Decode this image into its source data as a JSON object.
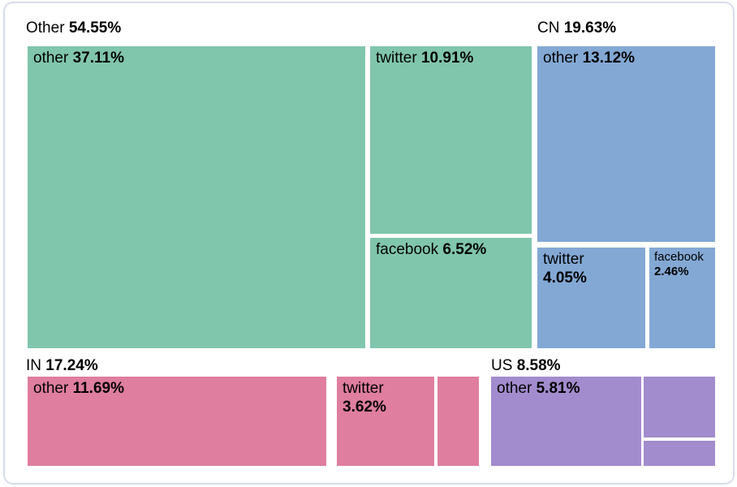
{
  "colors": {
    "group_other": "#80c6ac",
    "group_cn": "#83a8d4",
    "group_in": "#df7e9e",
    "group_us": "#a28ccd",
    "card_border": "#d6dce9",
    "text": "#000000",
    "background": "#ffffff"
  },
  "chart_data": {
    "type": "treemap",
    "title": "",
    "unit": "%",
    "legend": "none",
    "groups": [
      {
        "label": "Other",
        "pct": "54.55%",
        "value": 54.55,
        "color": "#80c6ac",
        "children": [
          {
            "label": "other",
            "pct": "37.11%",
            "value": 37.11
          },
          {
            "label": "twitter",
            "pct": "10.91%",
            "value": 10.91
          },
          {
            "label": "facebook",
            "pct": "6.52%",
            "value": 6.52
          }
        ]
      },
      {
        "label": "CN",
        "pct": "19.63%",
        "value": 19.63,
        "color": "#83a8d4",
        "children": [
          {
            "label": "other",
            "pct": "13.12%",
            "value": 13.12
          },
          {
            "label": "twitter",
            "pct": "4.05%",
            "value": 4.05
          },
          {
            "label": "facebook",
            "pct": "2.46%",
            "value": 2.46
          }
        ]
      },
      {
        "label": "IN",
        "pct": "17.24%",
        "value": 17.24,
        "color": "#df7e9e",
        "children": [
          {
            "label": "other",
            "pct": "11.69%",
            "value": 11.69
          },
          {
            "label": "twitter",
            "pct": "3.62%",
            "value": 3.62
          },
          {
            "label": "",
            "pct": ""
          }
        ]
      },
      {
        "label": "US",
        "pct": "8.58%",
        "value": 8.58,
        "color": "#a28ccd",
        "children": [
          {
            "label": "other",
            "pct": "5.81%",
            "value": 5.81
          },
          {
            "label": "",
            "pct": ""
          },
          {
            "label": "",
            "pct": ""
          }
        ]
      }
    ]
  }
}
